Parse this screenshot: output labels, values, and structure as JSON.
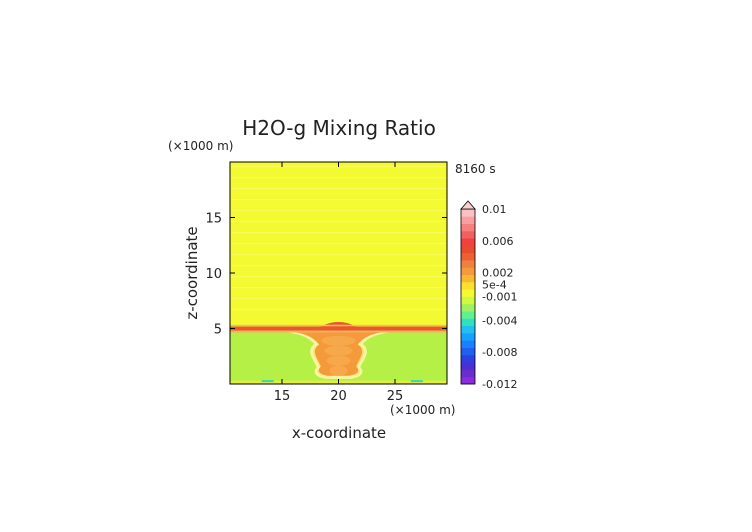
{
  "chart_data": {
    "type": "heatmap",
    "title": "H2O-g Mixing Ratio",
    "xlabel": "x-coordinate",
    "ylabel": "z-coordinate",
    "x_unit": "(×1000 m)",
    "y_unit": "(×1000 m)",
    "time_label": "8160 s",
    "xlim": [
      10.4,
      29.6
    ],
    "ylim": [
      0,
      20
    ],
    "x_ticks": [
      "15",
      "20",
      "25"
    ],
    "x_tick_values": [
      15,
      20,
      25
    ],
    "y_ticks": [
      "5",
      "10",
      "15"
    ],
    "y_tick_values": [
      5,
      10,
      15
    ],
    "field": {
      "upper_layer": {
        "z_range": [
          5.1,
          20
        ],
        "value": 0.0003,
        "color": "#f4fa32"
      },
      "inversion_band": {
        "z_center": 5.0,
        "thickness": 0.35,
        "value": 0.0035,
        "color": "#e8582a"
      },
      "lower_layer": {
        "z_range": [
          0,
          4.9
        ],
        "value": -0.0008,
        "color": "#b4f046"
      },
      "plume_core": {
        "x_center": 20,
        "value": 0.0015,
        "color": "#f59a3a"
      }
    },
    "colorbar": {
      "labels": [
        "0.01",
        "0.006",
        "0.002",
        "5e-4",
        "-0.001",
        "-0.004",
        "-0.008",
        "-0.012"
      ],
      "label_values": [
        0.01,
        0.006,
        0.002,
        0.0005,
        -0.001,
        -0.004,
        -0.008,
        -0.012
      ],
      "range": [
        -0.012,
        0.01
      ],
      "extend": "max",
      "colors": [
        "#8a2be2",
        "#6a2ccc",
        "#4b2fd6",
        "#3040e0",
        "#2060f0",
        "#1a80ff",
        "#18a0ff",
        "#20c0f0",
        "#30e0c0",
        "#60f090",
        "#a0f060",
        "#d0f840",
        "#f4fa32",
        "#fbe030",
        "#f8b830",
        "#f59a3a",
        "#f08040",
        "#ee6030",
        "#ea4a30",
        "#f04040",
        "#f06060",
        "#f58080",
        "#f8a0a0",
        "#fbc0c0"
      ]
    }
  }
}
